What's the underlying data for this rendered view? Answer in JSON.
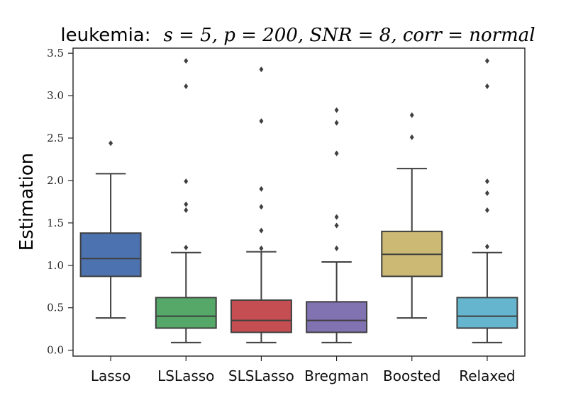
{
  "chart_data": {
    "type": "box",
    "title_prefix": "leukemia:",
    "title_math": "s = 5, p = 200, SNR = 8, corr = normal",
    "xlabel": "",
    "ylabel": "Estimation",
    "ylim": [
      -0.07,
      3.56
    ],
    "yticks": [
      0.0,
      0.5,
      1.0,
      1.5,
      2.0,
      2.5,
      3.0,
      3.5
    ],
    "ytick_labels": [
      "0.0",
      "0.5",
      "1.0",
      "1.5",
      "2.0",
      "2.5",
      "3.0",
      "3.5"
    ],
    "grid": false,
    "categories": [
      "Lasso",
      "LSLasso",
      "SLSLasso",
      "Bregman",
      "Boosted",
      "Relaxed"
    ],
    "boxes": [
      {
        "name": "Lasso",
        "color": "#4c72b0",
        "whisker_low": 0.38,
        "q1": 0.87,
        "median": 1.08,
        "q3": 1.38,
        "whisker_high": 2.08,
        "outliers": [
          2.44
        ]
      },
      {
        "name": "LSLasso",
        "color": "#55a868",
        "whisker_low": 0.09,
        "q1": 0.26,
        "median": 0.4,
        "q3": 0.62,
        "whisker_high": 1.15,
        "outliers": [
          1.21,
          1.65,
          1.72,
          1.99,
          3.11,
          3.41
        ]
      },
      {
        "name": "SLSLasso",
        "color": "#c44e52",
        "whisker_low": 0.09,
        "q1": 0.21,
        "median": 0.35,
        "q3": 0.59,
        "whisker_high": 1.16,
        "outliers": [
          1.2,
          1.41,
          1.69,
          1.9,
          2.7,
          3.31
        ]
      },
      {
        "name": "Bregman",
        "color": "#8172b2",
        "whisker_low": 0.09,
        "q1": 0.21,
        "median": 0.35,
        "q3": 0.57,
        "whisker_high": 1.04,
        "outliers": [
          1.2,
          1.47,
          1.57,
          2.32,
          2.68,
          2.83
        ]
      },
      {
        "name": "Boosted",
        "color": "#ccb974",
        "whisker_low": 0.38,
        "q1": 0.87,
        "median": 1.13,
        "q3": 1.4,
        "whisker_high": 2.14,
        "outliers": [
          2.51,
          2.77
        ]
      },
      {
        "name": "Relaxed",
        "color": "#64b5cd",
        "whisker_low": 0.09,
        "q1": 0.26,
        "median": 0.4,
        "q3": 0.62,
        "whisker_high": 1.15,
        "outliers": [
          1.22,
          1.65,
          1.85,
          1.99,
          3.11,
          3.41
        ]
      }
    ]
  }
}
